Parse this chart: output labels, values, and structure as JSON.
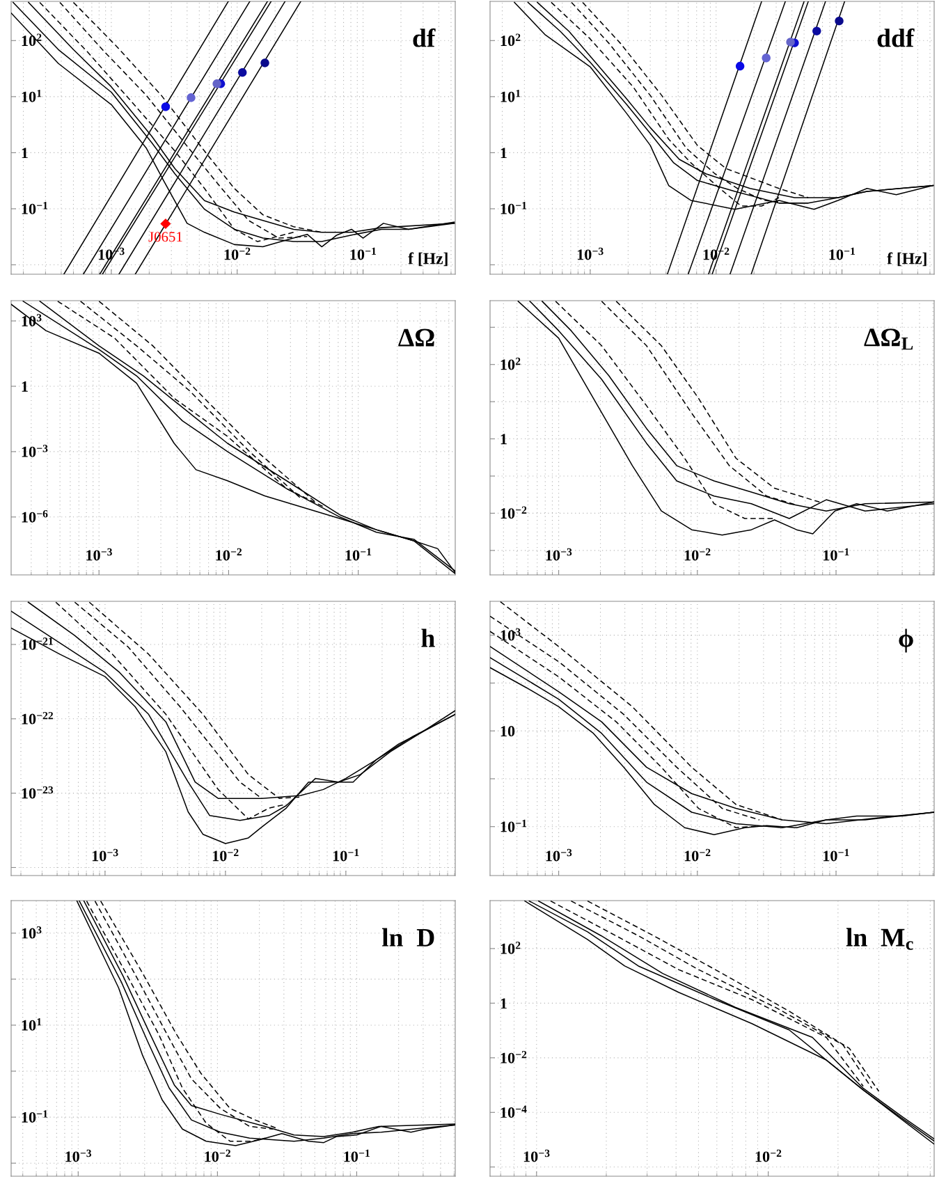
{
  "chart_data": [
    {
      "type": "line",
      "title": "df",
      "xlabel": "f [Hz]",
      "log": "xy",
      "grid": true,
      "xlim": [
        0.00016,
        0.54
      ],
      "ylim": [
        0.0068,
        500
      ],
      "xticks": [
        {
          "value": 0.001,
          "label": "10$^{−3}$"
        },
        {
          "value": 0.01,
          "label": "10$^{−2}$"
        },
        {
          "value": 0.1,
          "label": "10$^{−1}$"
        }
      ],
      "yticks": [
        {
          "value": 0.01,
          "label": null
        },
        {
          "value": 0.1,
          "label": "10$^{−1}$"
        },
        1,
        {
          "value": 10,
          "label": "10$^{1}$"
        },
        {
          "value": 100,
          "label": "10$^{2}$"
        }
      ],
      "annotations": [
        {
          "text": "J0651",
          "x": 0.0027,
          "y": 0.054
        }
      ],
      "series": [
        {
          "color": "#000000",
          "line_style": "solid",
          "x": [
            0.00016,
            0.00038,
            0.001,
            0.0019,
            0.0026,
            0.004,
            0.0055,
            0.0095,
            0.016,
            0.028,
            0.036,
            0.047,
            0.062,
            0.081,
            0.1,
            0.145,
            0.23,
            0.53
          ],
          "values": [
            310,
            39,
            7.2,
            1.2,
            0.32,
            0.055,
            0.038,
            0.023,
            0.021,
            0.03,
            0.035,
            0.021,
            0.034,
            0.043,
            0.03,
            0.055,
            0.043,
            0.058
          ]
        },
        {
          "color": "#000000",
          "line_style": "solid",
          "x": [
            0.000166,
            0.00038,
            0.001,
            0.0021,
            0.0032,
            0.0055,
            0.0095,
            0.016,
            0.028,
            0.047,
            0.081,
            0.14,
            0.23,
            0.53
          ],
          "values": [
            480,
            69,
            12,
            1.5,
            0.42,
            0.098,
            0.043,
            0.03,
            0.026,
            0.026,
            0.034,
            0.043,
            0.043,
            0.055
          ]
        },
        {
          "color": "#000000",
          "line_style": "solid",
          "x": [
            0.00022,
            0.0005,
            0.001,
            0.0021,
            0.0032,
            0.0055,
            0.0095,
            0.016,
            0.028,
            0.047,
            0.081,
            0.14,
            0.53
          ],
          "values": [
            480,
            69,
            15,
            1.95,
            0.52,
            0.14,
            0.087,
            0.062,
            0.043,
            0.038,
            0.038,
            0.046,
            0.055
          ]
        },
        {
          "color": "#000000",
          "line_style": "dashed",
          "x": [
            0.00027,
            0.00065,
            0.00145,
            0.0032,
            0.0055,
            0.0095,
            0.0145,
            0.028
          ],
          "values": [
            480,
            62,
            8.1,
            1.07,
            0.23,
            0.043,
            0.026,
            0.038
          ]
        },
        {
          "color": "#000000",
          "line_style": "dashed",
          "x": [
            0.00039,
            0.00085,
            0.0019,
            0.0043,
            0.0072,
            0.0123,
            0.0214,
            0.036
          ],
          "values": [
            480,
            69,
            10.5,
            1.07,
            0.26,
            0.062,
            0.03,
            0.032
          ]
        },
        {
          "color": "#000000",
          "line_style": "dashed",
          "x": [
            0.0005,
            0.0011,
            0.0025,
            0.0055,
            0.0095,
            0.016,
            0.028,
            0.047
          ],
          "values": [
            480,
            79,
            10.5,
            1.07,
            0.23,
            0.078,
            0.048,
            0.038
          ]
        },
        {
          "color": "#000000",
          "line_style": "solid",
          "x": [
            0.00042,
            0.0085
          ],
          "values": [
            0.0068,
            500
          ]
        },
        {
          "color": "#000000",
          "line_style": "solid",
          "x": [
            0.0006,
            0.0126
          ],
          "values": [
            0.0068,
            500
          ]
        },
        {
          "color": "#000000",
          "line_style": "solid",
          "x": [
            0.00081,
            0.0174
          ],
          "values": [
            0.0068,
            500
          ]
        },
        {
          "color": "#000000",
          "line_style": "solid",
          "x": [
            0.00085,
            0.0186
          ],
          "values": [
            0.0068,
            500
          ]
        },
        {
          "color": "#000000",
          "line_style": "solid",
          "x": [
            0.00115,
            0.024
          ],
          "values": [
            0.0068,
            500
          ]
        },
        {
          "color": "#000000",
          "line_style": "solid",
          "x": [
            0.00155,
            0.032
          ],
          "values": [
            0.0068,
            500
          ]
        },
        {
          "type": "scatter",
          "marker": "circle",
          "x": [
            0.0027,
            0.0043,
            0.0074,
            0.0069,
            0.011,
            0.0166
          ],
          "values": [
            6.6,
            9.6,
            17,
            17,
            27,
            40
          ],
          "colors": [
            "#0a0ae6",
            "#6464d2",
            "#1010d0",
            "#6464c8",
            "#0c0ca0",
            "#0a0a8c"
          ]
        },
        {
          "type": "scatter",
          "marker": "diamond",
          "color": "#ff0000",
          "x": [
            0.0027
          ],
          "values": [
            0.054
          ]
        }
      ]
    },
    {
      "type": "line",
      "title": "ddf",
      "xlabel": "f [Hz]",
      "log": "xy",
      "grid": true,
      "xlim": [
        0.00016,
        0.54
      ],
      "ylim": [
        0.0068,
        500
      ],
      "xticks": [
        {
          "value": 0.001,
          "label": "10$^{−3}$"
        },
        {
          "value": 0.01,
          "label": "10$^{−2}$"
        },
        {
          "value": 0.1,
          "label": "10$^{−1}$"
        }
      ],
      "yticks": [
        {
          "value": 0.01,
          "label": null
        },
        {
          "value": 0.1,
          "label": "10$^{−1}$"
        },
        1,
        {
          "value": 10,
          "label": "10$^{1}$"
        },
        {
          "value": 100,
          "label": "10$^{2}$"
        }
      ],
      "series": [
        {
          "color": "#000000",
          "line_style": "solid",
          "x": [
            0.00025,
            0.00044,
            0.001,
            0.00195,
            0.003,
            0.0042,
            0.0063,
            0.0141,
            0.0316,
            0.06,
            0.093,
            0.158,
            0.27,
            0.53
          ],
          "values": [
            480,
            126,
            34,
            5,
            1.35,
            0.26,
            0.141,
            0.098,
            0.141,
            0.098,
            0.141,
            0.23,
            0.178,
            0.26
          ]
        },
        {
          "color": "#000000",
          "line_style": "solid",
          "x": [
            0.00032,
            0.00058,
            0.00102,
            0.00195,
            0.003,
            0.0046,
            0.0071,
            0.0141,
            0.0316,
            0.054,
            0.093,
            0.158,
            0.53
          ],
          "values": [
            480,
            145,
            39,
            7.2,
            2.2,
            0.66,
            0.32,
            0.204,
            0.126,
            0.126,
            0.158,
            0.204,
            0.26
          ]
        },
        {
          "color": "#000000",
          "line_style": "solid",
          "x": [
            0.00038,
            0.00068,
            0.00107,
            0.00195,
            0.003,
            0.0051,
            0.0083,
            0.0186,
            0.042,
            0.093,
            0.158,
            0.53
          ],
          "values": [
            480,
            145,
            44,
            9.1,
            2.8,
            0.76,
            0.42,
            0.23,
            0.158,
            0.158,
            0.204,
            0.26
          ]
        },
        {
          "color": "#000000",
          "line_style": "dashed",
          "x": [
            0.00049,
            0.00098,
            0.0022,
            0.0042,
            0.0063,
            0.0107,
            0.0158,
            0.023,
            0.0316
          ],
          "values": [
            480,
            112,
            14.8,
            1.74,
            0.66,
            0.23,
            0.112,
            0.112,
            0.158
          ]
        },
        {
          "color": "#000000",
          "line_style": "dashed",
          "x": [
            0.00071,
            0.00141,
            0.003,
            0.0058,
            0.0098,
            0.0148,
            0.024,
            0.0316
          ],
          "values": [
            480,
            89,
            10.5,
            1.2,
            0.42,
            0.23,
            0.141,
            0.132
          ]
        },
        {
          "color": "#000000",
          "line_style": "dashed",
          "x": [
            0.00087,
            0.00174,
            0.0037,
            0.0071,
            0.012,
            0.0186,
            0.0316,
            0.054
          ],
          "values": [
            480,
            89,
            10.5,
            1.35,
            0.52,
            0.36,
            0.23,
            0.158
          ]
        },
        {
          "color": "#000000",
          "line_style": "solid",
          "x": [
            0.0041,
            0.023
          ],
          "values": [
            0.0068,
            500
          ]
        },
        {
          "color": "#000000",
          "line_style": "solid",
          "x": [
            0.006,
            0.0355
          ],
          "values": [
            0.0068,
            500
          ]
        },
        {
          "color": "#000000",
          "line_style": "solid",
          "x": [
            0.0087,
            0.05
          ],
          "values": [
            0.0068,
            500
          ]
        },
        {
          "color": "#000000",
          "line_style": "solid",
          "x": [
            0.0093,
            0.054
          ],
          "values": [
            0.0068,
            500
          ]
        },
        {
          "color": "#000000",
          "line_style": "solid",
          "x": [
            0.0129,
            0.074
          ],
          "values": [
            0.0068,
            500
          ]
        },
        {
          "color": "#000000",
          "line_style": "solid",
          "x": [
            0.019,
            0.105
          ],
          "values": [
            0.0068,
            500
          ]
        },
        {
          "type": "scatter",
          "marker": "circle",
          "x": [
            0.0155,
            0.025,
            0.042,
            0.039,
            0.063,
            0.095
          ],
          "values": [
            35,
            49,
            91,
            94,
            148,
            224
          ],
          "colors": [
            "#0a0ae6",
            "#6464d2",
            "#1010d0",
            "#6464c8",
            "#0c0ca0",
            "#0a0a8c"
          ]
        }
      ]
    },
    {
      "type": "line",
      "title": "ΔΩ",
      "log": "xy",
      "grid": true,
      "xlim": [
        0.00021,
        0.56
      ],
      "ylim": [
        2.2e-09,
        8500
      ],
      "xticks": [
        {
          "value": 0.001,
          "label": "10$^{−3}$"
        },
        {
          "value": 0.01,
          "label": "10$^{−2}$"
        },
        {
          "value": 0.1,
          "label": "10$^{−1}$"
        }
      ],
      "yticks": [
        {
          "value": 1e-06,
          "label": "10$^{−6}$"
        },
        {
          "value": 0.001,
          "label": "10$^{−3}$"
        },
        1,
        {
          "value": 1000,
          "label": "10$^{3}$"
        }
      ],
      "series": [
        {
          "color": "#000000",
          "line_style": "solid",
          "x": [
            0.00021,
            0.00039,
            0.001,
            0.00195,
            0.0038,
            0.0056,
            0.0098,
            0.019,
            0.037,
            0.072,
            0.138,
            0.27,
            0.41,
            0.56
          ],
          "values": [
            5800,
            355,
            33,
            1.38,
            0.0024,
            0.000148,
            4.6e-05,
            9.3e-06,
            2.8e-06,
            8.5e-07,
            2.6e-07,
            7.9e-08,
            3.5e-08,
            2.8e-09
          ]
        },
        {
          "color": "#000000",
          "line_style": "solid",
          "x": [
            0.00026,
            0.001,
            0.00195,
            0.0044,
            0.0098,
            0.028,
            0.072,
            0.138,
            0.27,
            0.56
          ],
          "values": [
            8000,
            49,
            3,
            0.026,
            0.001,
            2e-05,
            1e-06,
            2e-07,
            9.3e-08,
            3.3e-09
          ]
        },
        {
          "color": "#000000",
          "line_style": "solid",
          "x": [
            0.00035,
            0.001,
            0.0022,
            0.005,
            0.0098,
            0.028,
            0.072,
            0.138,
            0.27,
            0.56
          ],
          "values": [
            8000,
            72,
            3,
            0.058,
            0.0024,
            4.6e-05,
            1.26e-06,
            2.6e-07,
            7.9e-08,
            2.5e-09
          ]
        },
        {
          "color": "#000000",
          "line_style": "dashed",
          "x": [
            0.00048,
            0.00132,
            0.0038,
            0.0098,
            0.028,
            0.055
          ],
          "values": [
            8000,
            162,
            0.28,
            0.005,
            2e-05,
            2.8e-06
          ]
        },
        {
          "color": "#000000",
          "line_style": "dashed",
          "x": [
            0.00072,
            0.00195,
            0.005,
            0.0145,
            0.037
          ],
          "values": [
            8000,
            72,
            0.62,
            0.001,
            6.2e-06
          ]
        },
        {
          "color": "#000000",
          "line_style": "dashed",
          "x": [
            0.001,
            0.0026,
            0.0065,
            0.0166,
            0.048
          ],
          "values": [
            8000,
            72,
            0.28,
            0.001,
            4.2e-06
          ]
        }
      ]
    },
    {
      "type": "line",
      "title": "ΔΩ$_{L}$",
      "log": "xy",
      "grid": true,
      "xlim": [
        0.00032,
        0.51
      ],
      "ylim": [
        0.00022,
        5200
      ],
      "xticks": [
        {
          "value": 0.001,
          "label": "10$^{−3}$"
        },
        {
          "value": 0.01,
          "label": "10$^{−2}$"
        },
        {
          "value": 0.1,
          "label": "10$^{−1}$"
        }
      ],
      "yticks": [
        {
          "value": 0.001,
          "label": null
        },
        {
          "value": 0.01,
          "label": "10$^{−2}$"
        },
        {
          "value": 0.1,
          "label": null
        },
        1,
        {
          "value": 10,
          "label": null
        },
        {
          "value": 100,
          "label": "10$^{2}$"
        },
        {
          "value": 1000,
          "label": null
        }
      ],
      "series": [
        {
          "color": "#000000",
          "line_style": "solid",
          "x": [
            0.00051,
            0.001,
            0.00178,
            0.0034,
            0.0055,
            0.0091,
            0.0151,
            0.0245,
            0.036,
            0.052,
            0.068,
            0.098,
            0.141,
            0.234,
            0.51
          ],
          "values": [
            5000,
            510,
            12.3,
            0.19,
            0.0115,
            0.0036,
            0.0026,
            0.0036,
            0.0066,
            0.0036,
            0.0028,
            0.0115,
            0.018,
            0.0115,
            0.02
          ]
        },
        {
          "color": "#000000",
          "line_style": "solid",
          "x": [
            0.00062,
            0.001,
            0.00204,
            0.0043,
            0.0071,
            0.0132,
            0.0245,
            0.046,
            0.085,
            0.162,
            0.51
          ],
          "values": [
            5000,
            810,
            40,
            0.76,
            0.074,
            0.029,
            0.018,
            0.0072,
            0.023,
            0.0115,
            0.018
          ]
        },
        {
          "color": "#000000",
          "line_style": "solid",
          "x": [
            0.00076,
            0.00123,
            0.0023,
            0.0043,
            0.0071,
            0.0132,
            0.0245,
            0.046,
            0.085,
            0.162,
            0.51
          ],
          "values": [
            5000,
            810,
            50,
            1.9,
            0.19,
            0.074,
            0.037,
            0.018,
            0.0115,
            0.018,
            0.02
          ]
        },
        {
          "color": "#000000",
          "line_style": "dashed",
          "x": [
            0.00095,
            0.00204,
            0.0043,
            0.0081,
            0.0132,
            0.022,
            0.036
          ],
          "values": [
            5000,
            320,
            7.8,
            0.3,
            0.018,
            0.0072,
            0.0072
          ]
        },
        {
          "color": "#000000",
          "line_style": "dashed",
          "x": [
            0.00204,
            0.0043,
            0.0091,
            0.017,
            0.0316,
            0.052
          ],
          "values": [
            5000,
            320,
            4.9,
            0.19,
            0.029,
            0.0166
          ]
        },
        {
          "color": "#000000",
          "line_style": "dashed",
          "x": [
            0.0026,
            0.0055,
            0.0102,
            0.019,
            0.036,
            0.076
          ],
          "values": [
            5000,
            320,
            12.3,
            0.3,
            0.047,
            0.02
          ]
        }
      ]
    },
    {
      "type": "line",
      "title": "h",
      "log": "xy",
      "grid": true,
      "xlim": [
        0.000166,
        0.81
      ],
      "ylim": [
        7.8e-25,
        3.8e-21
      ],
      "xticks": [
        {
          "value": 0.001,
          "label": "10$^{−3}$"
        },
        {
          "value": 0.01,
          "label": "10$^{−2}$"
        },
        {
          "value": 0.1,
          "label": "10$^{−1}$"
        }
      ],
      "yticks": [
        {
          "value": 1e-24,
          "label": null
        },
        {
          "value": 1e-23,
          "label": "10$^{−23}$"
        },
        {
          "value": 1e-22,
          "label": "10$^{−22}$"
        },
        {
          "value": 1e-21,
          "label": "10$^{−21}$"
        }
      ],
      "series": [
        {
          "color": "#000000",
          "line_style": "solid",
          "x": [
            0.000166,
            0.00042,
            0.001,
            0.00178,
            0.0032,
            0.0049,
            0.0065,
            0.01,
            0.0155,
            0.02,
            0.032,
            0.049,
            0.074,
            0.115,
            0.178,
            0.275,
            0.42,
            0.81
          ],
          "values": [
            1.66e-21,
            7.4e-22,
            3.7e-22,
            1.45e-22,
            3.6e-23,
            5.6e-24,
            2.8e-24,
            2.1e-24,
            2.5e-24,
            3.5e-24,
            6.3e-24,
            1.41e-23,
            1.41e-23,
            1.41e-23,
            2.8e-23,
            4.6e-23,
            6.5e-23,
            1.29e-22
          ]
        },
        {
          "color": "#000000",
          "line_style": "solid",
          "x": [
            0.000166,
            0.00042,
            0.001,
            0.0023,
            0.0049,
            0.0074,
            0.0132,
            0.023,
            0.032,
            0.056,
            0.087,
            0.132,
            0.234,
            0.42,
            0.81
          ],
          "values": [
            2.8e-21,
            1.05e-21,
            4.2e-22,
            1.15e-22,
            1.41e-23,
            5e-24,
            4.3e-24,
            5e-24,
            6.8e-24,
            1.58e-23,
            1.41e-23,
            1.78e-23,
            3.6e-23,
            6.5e-23,
            1.15e-22
          ]
        },
        {
          "color": "#000000",
          "line_style": "solid",
          "x": [
            0.00023,
            0.00056,
            0.00132,
            0.0032,
            0.0056,
            0.0087,
            0.02,
            0.042,
            0.065,
            0.1,
            0.178,
            0.36,
            0.81
          ],
          "values": [
            3.7e-21,
            1.32e-21,
            4.2e-22,
            9.1e-23,
            1.41e-23,
            8.5e-24,
            8.5e-24,
            9.3e-24,
            1.12e-23,
            1.58e-23,
            2.8e-23,
            5.8e-23,
            1.15e-22
          ]
        },
        {
          "color": "#000000",
          "line_style": "dashed",
          "x": [
            0.00039,
            0.00115,
            0.0032,
            0.0087,
            0.0155,
            0.023,
            0.032
          ],
          "values": [
            3.7e-21,
            7.4e-22,
            1.15e-22,
            1.12e-23,
            4.5e-24,
            6.3e-24,
            7.1e-24
          ]
        },
        {
          "color": "#000000",
          "line_style": "dashed",
          "x": [
            0.00056,
            0.00155,
            0.0042,
            0.0132,
            0.02
          ],
          "values": [
            3.7e-21,
            9.3e-22,
            1.45e-22,
            1.41e-23,
            8.5e-24
          ]
        },
        {
          "color": "#000000",
          "line_style": "dashed",
          "x": [
            0.00074,
            0.0023,
            0.0065,
            0.0155,
            0.028,
            0.042
          ],
          "values": [
            3.7e-21,
            7.4e-22,
            1.15e-22,
            1.78e-23,
            8.5e-24,
            8.9e-24
          ]
        }
      ]
    },
    {
      "type": "line",
      "title": "ϕ",
      "log": "xy",
      "grid": true,
      "xlim": [
        0.00032,
        0.51
      ],
      "ylim": [
        0.0095,
        5100
      ],
      "xticks": [
        {
          "value": 0.001,
          "label": "10$^{−3}$"
        },
        {
          "value": 0.01,
          "label": "10$^{−2}$"
        },
        {
          "value": 0.1,
          "label": "10$^{−1}$"
        }
      ],
      "yticks": [
        {
          "value": 0.1,
          "label": "10$^{−1}$"
        },
        {
          "value": 1,
          "label": null
        },
        10,
        {
          "value": 100,
          "label": null
        },
        {
          "value": 1000,
          "label": "10$^{3}$"
        }
      ],
      "series": [
        {
          "color": "#000000",
          "line_style": "solid",
          "x": [
            0.00032,
            0.00059,
            0.001,
            0.00178,
            0.00295,
            0.0049,
            0.0081,
            0.0132,
            0.022,
            0.0316,
            0.052,
            0.085,
            0.141,
            0.3,
            0.51
          ],
          "values": [
            210,
            79,
            32,
            8.9,
            1.74,
            0.29,
            0.095,
            0.068,
            0.095,
            0.105,
            0.095,
            0.138,
            0.166,
            0.166,
            0.2
          ]
        },
        {
          "color": "#000000",
          "line_style": "solid",
          "x": [
            0.00032,
            0.001,
            0.00204,
            0.0043,
            0.0091,
            0.019,
            0.041,
            0.085,
            0.162,
            0.51
          ],
          "values": [
            340,
            46,
            8.9,
            0.85,
            0.2,
            0.115,
            0.095,
            0.138,
            0.138,
            0.2
          ]
        },
        {
          "color": "#000000",
          "line_style": "solid",
          "x": [
            0.00032,
            0.001,
            0.00204,
            0.0043,
            0.0091,
            0.019,
            0.041,
            0.085,
            0.182,
            0.51
          ],
          "values": [
            580,
            66,
            15.5,
            1.74,
            0.49,
            0.24,
            0.138,
            0.115,
            0.148,
            0.2
          ]
        },
        {
          "color": "#000000",
          "line_style": "dashed",
          "x": [
            0.00032,
            0.001,
            0.0026,
            0.0055,
            0.0102,
            0.019,
            0.0316
          ],
          "values": [
            1200,
            135,
            15.5,
            1.74,
            0.24,
            0.095,
            0.105
          ]
        },
        {
          "color": "#000000",
          "line_style": "dashed",
          "x": [
            0.00032,
            0.001,
            0.00295,
            0.0071,
            0.0151,
            0.028
          ],
          "values": [
            2500,
            280,
            22,
            1.74,
            0.24,
            0.138
          ]
        },
        {
          "color": "#000000",
          "line_style": "dashed",
          "x": [
            0.00038,
            0.001,
            0.0034,
            0.0091,
            0.019,
            0.041
          ],
          "values": [
            5000,
            580,
            32,
            1.74,
            0.29,
            0.138
          ]
        }
      ]
    },
    {
      "type": "line",
      "title": "ln  D",
      "log": "xy",
      "grid": true,
      "xlim": [
        0.00033,
        0.51
      ],
      "ylim": [
        0.0052,
        5100
      ],
      "xticks": [
        {
          "value": 0.001,
          "label": "10$^{−3}$"
        },
        {
          "value": 0.01,
          "label": "10$^{−2}$"
        },
        {
          "value": 0.1,
          "label": "10$^{−1}$"
        }
      ],
      "yticks": [
        {
          "value": 0.01,
          "label": null
        },
        {
          "value": 0.1,
          "label": "10$^{−1}$"
        },
        {
          "value": 1,
          "label": null
        },
        {
          "value": 10,
          "label": "10$^{1}$"
        },
        {
          "value": 100,
          "label": null
        },
        {
          "value": 1000,
          "label": "10$^{3}$"
        }
      ],
      "series": [
        {
          "color": "#000000",
          "line_style": "solid",
          "x": [
            0.00098,
            0.00195,
            0.0029,
            0.004,
            0.0056,
            0.0083,
            0.0135,
            0.02,
            0.029,
            0.045,
            0.058,
            0.072,
            0.1,
            0.15,
            0.245,
            0.31,
            0.51
          ],
          "values": [
            5000,
            65,
            2.2,
            0.24,
            0.055,
            0.03,
            0.024,
            0.032,
            0.044,
            0.03,
            0.028,
            0.038,
            0.041,
            0.063,
            0.047,
            0.055,
            0.068
          ]
        },
        {
          "color": "#000000",
          "line_style": "solid",
          "x": [
            0.00102,
            0.00204,
            0.0032,
            0.0045,
            0.0065,
            0.0105,
            0.017,
            0.0355,
            0.058,
            0.093,
            0.15,
            0.51
          ],
          "values": [
            5000,
            87,
            4,
            0.43,
            0.087,
            0.047,
            0.035,
            0.03,
            0.035,
            0.044,
            0.047,
            0.068
          ]
        },
        {
          "color": "#000000",
          "line_style": "solid",
          "x": [
            0.0011,
            0.0021,
            0.0033,
            0.0049,
            0.0065,
            0.0105,
            0.022,
            0.0355,
            0.058,
            0.093,
            0.144,
            0.51
          ],
          "values": [
            5000,
            117,
            6.2,
            0.5,
            0.178,
            0.115,
            0.063,
            0.041,
            0.038,
            0.047,
            0.063,
            0.071
          ]
        },
        {
          "color": "#000000",
          "line_style": "dashed",
          "x": [
            0.00115,
            0.0022,
            0.0038,
            0.0056,
            0.0083,
            0.0123,
            0.0178,
            0.022
          ],
          "values": [
            5000,
            135,
            6.2,
            0.43,
            0.074,
            0.03,
            0.03,
            0.035
          ]
        },
        {
          "color": "#000000",
          "line_style": "dashed",
          "x": [
            0.00132,
            0.0026,
            0.0045,
            0.0065,
            0.0105,
            0.017,
            0.025
          ],
          "values": [
            5000,
            117,
            5.2,
            0.68,
            0.155,
            0.063,
            0.055
          ]
        },
        {
          "color": "#000000",
          "line_style": "dashed",
          "x": [
            0.00145,
            0.0029,
            0.0051,
            0.0076,
            0.0123,
            0.0186,
            0.0275
          ],
          "values": [
            5000,
            135,
            6.2,
            0.9,
            0.155,
            0.087,
            0.055
          ]
        }
      ]
    },
    {
      "type": "line",
      "title": "ln  M$_{c}$",
      "log": "xy",
      "grid": true,
      "xlim": [
        0.00063,
        0.052
      ],
      "ylim": [
        4.6e-07,
        5700
      ],
      "xticks": [
        {
          "value": 0.001,
          "label": "10$^{−3}$"
        },
        {
          "value": 0.01,
          "label": "10$^{−2}$"
        }
      ],
      "yticks": [
        {
          "value": 1e-06,
          "label": null
        },
        {
          "value": 0.0001,
          "label": "10$^{−4}$"
        },
        {
          "value": 0.01,
          "label": "10$^{−2}$"
        },
        1,
        {
          "value": 100,
          "label": "10$^{2}$"
        }
      ],
      "series": [
        {
          "color": "#000000",
          "line_style": "solid",
          "x": [
            0.00089,
            0.00166,
            0.0024,
            0.0041,
            0.0085,
            0.0178,
            0.0257,
            0.038,
            0.052
          ],
          "values": [
            5500,
            214,
            23,
            2.5,
            0.178,
            0.0083,
            0.00066,
            5.2e-05,
            6.9e-06
          ]
        },
        {
          "color": "#000000",
          "line_style": "solid",
          "x": [
            0.00093,
            0.00166,
            0.00275,
            0.0059,
            0.0123,
            0.0257,
            0.038,
            0.052
          ],
          "values": [
            5500,
            410,
            23,
            1.35,
            0.105,
            0.00066,
            5.9e-05,
            8.9e-06
          ]
        },
        {
          "color": "#000000",
          "line_style": "solid",
          "x": [
            0.00102,
            0.0019,
            0.0035,
            0.0072,
            0.0155,
            0.0257,
            0.038,
            0.052
          ],
          "values": [
            5500,
            295,
            12.3,
            0.71,
            0.056,
            0.00076,
            6.8e-05,
            1.07e-05
          ]
        },
        {
          "color": "#000000",
          "line_style": "dashed",
          "x": [
            0.00115,
            0.0022,
            0.0041,
            0.0085,
            0.0178,
            0.0257
          ],
          "values": [
            5500,
            295,
            17,
            1.35,
            0.056,
            0.00091
          ]
        },
        {
          "color": "#000000",
          "line_style": "dashed",
          "x": [
            0.00141,
            0.00275,
            0.005,
            0.0107,
            0.021,
            0.028
          ],
          "values": [
            5500,
            295,
            17,
            0.71,
            0.03,
            0.00076
          ]
        },
        {
          "color": "#000000",
          "line_style": "dashed",
          "x": [
            0.00166,
            0.0032,
            0.0059,
            0.0123,
            0.0224,
            0.03
          ],
          "values": [
            5500,
            295,
            17,
            0.51,
            0.022,
            0.00059
          ]
        }
      ]
    }
  ]
}
